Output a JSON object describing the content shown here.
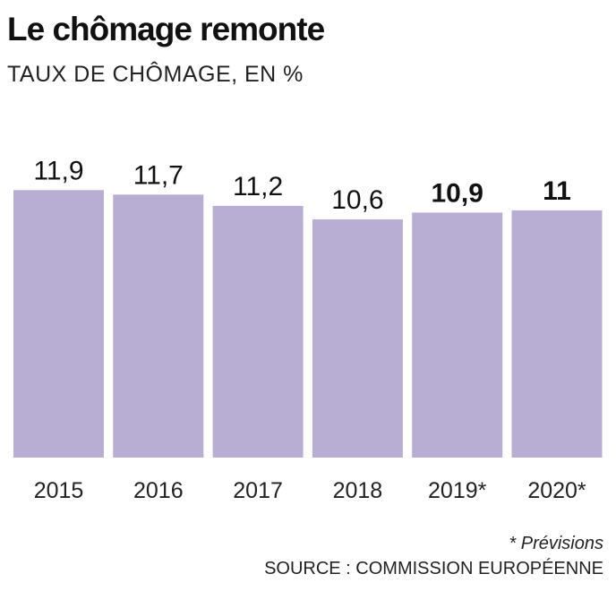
{
  "title": "Le chômage remonte",
  "subtitle": "TAUX DE CHÔMAGE, EN %",
  "note": "* Prévisions",
  "source": "SOURCE : COMMISSION EUROPÉENNE",
  "colors": {
    "bar": "#b8aed4",
    "text": "#111111"
  },
  "chart_data": {
    "type": "bar",
    "categories": [
      "2015",
      "2016",
      "2017",
      "2018",
      "2019*",
      "2020*"
    ],
    "values": [
      11.9,
      11.7,
      11.2,
      10.6,
      10.9,
      11
    ],
    "value_labels": [
      "11,9",
      "11,7",
      "11,2",
      "10,6",
      "10,9",
      "11"
    ],
    "bold_labels": [
      false,
      false,
      false,
      false,
      true,
      true
    ],
    "title": "Le chômage remonte",
    "xlabel": "",
    "ylabel": "",
    "grid": false,
    "legend": "none"
  }
}
